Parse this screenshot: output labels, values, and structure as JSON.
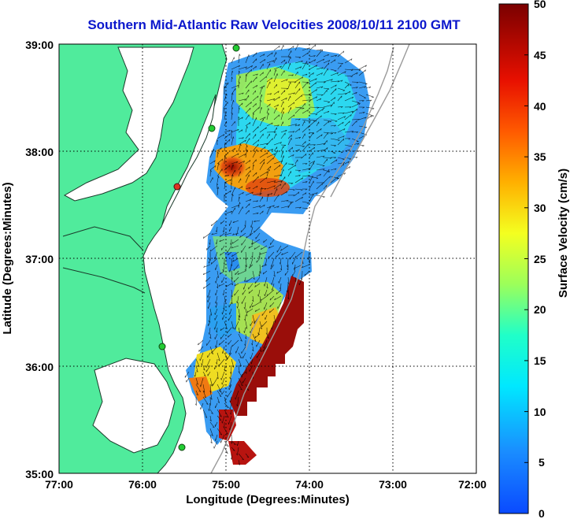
{
  "title": "Southern Mid-Atlantic Raw Velocities 2008/10/11 2100 GMT",
  "x_axis": {
    "label": "Longitude (Degrees:Minutes)",
    "ticks": [
      "77:00",
      "76:00",
      "75:00",
      "74:00",
      "73:00",
      "72:00"
    ]
  },
  "y_axis": {
    "label": "Latitude (Degrees:Minutes)",
    "ticks": [
      "39:00",
      "38:00",
      "37:00",
      "36:00",
      "35:00"
    ]
  },
  "colorbar": {
    "label": "Surface Velocity (cm/s)",
    "ticks": [
      "50",
      "45",
      "40",
      "35",
      "30",
      "25",
      "20",
      "15",
      "10",
      "5",
      "0"
    ],
    "range": [
      0,
      50
    ]
  },
  "colors": {
    "land": "#50eb9c",
    "title": "#0b17cc",
    "station": "#22cc33",
    "station_alt": "#dd3322"
  }
}
